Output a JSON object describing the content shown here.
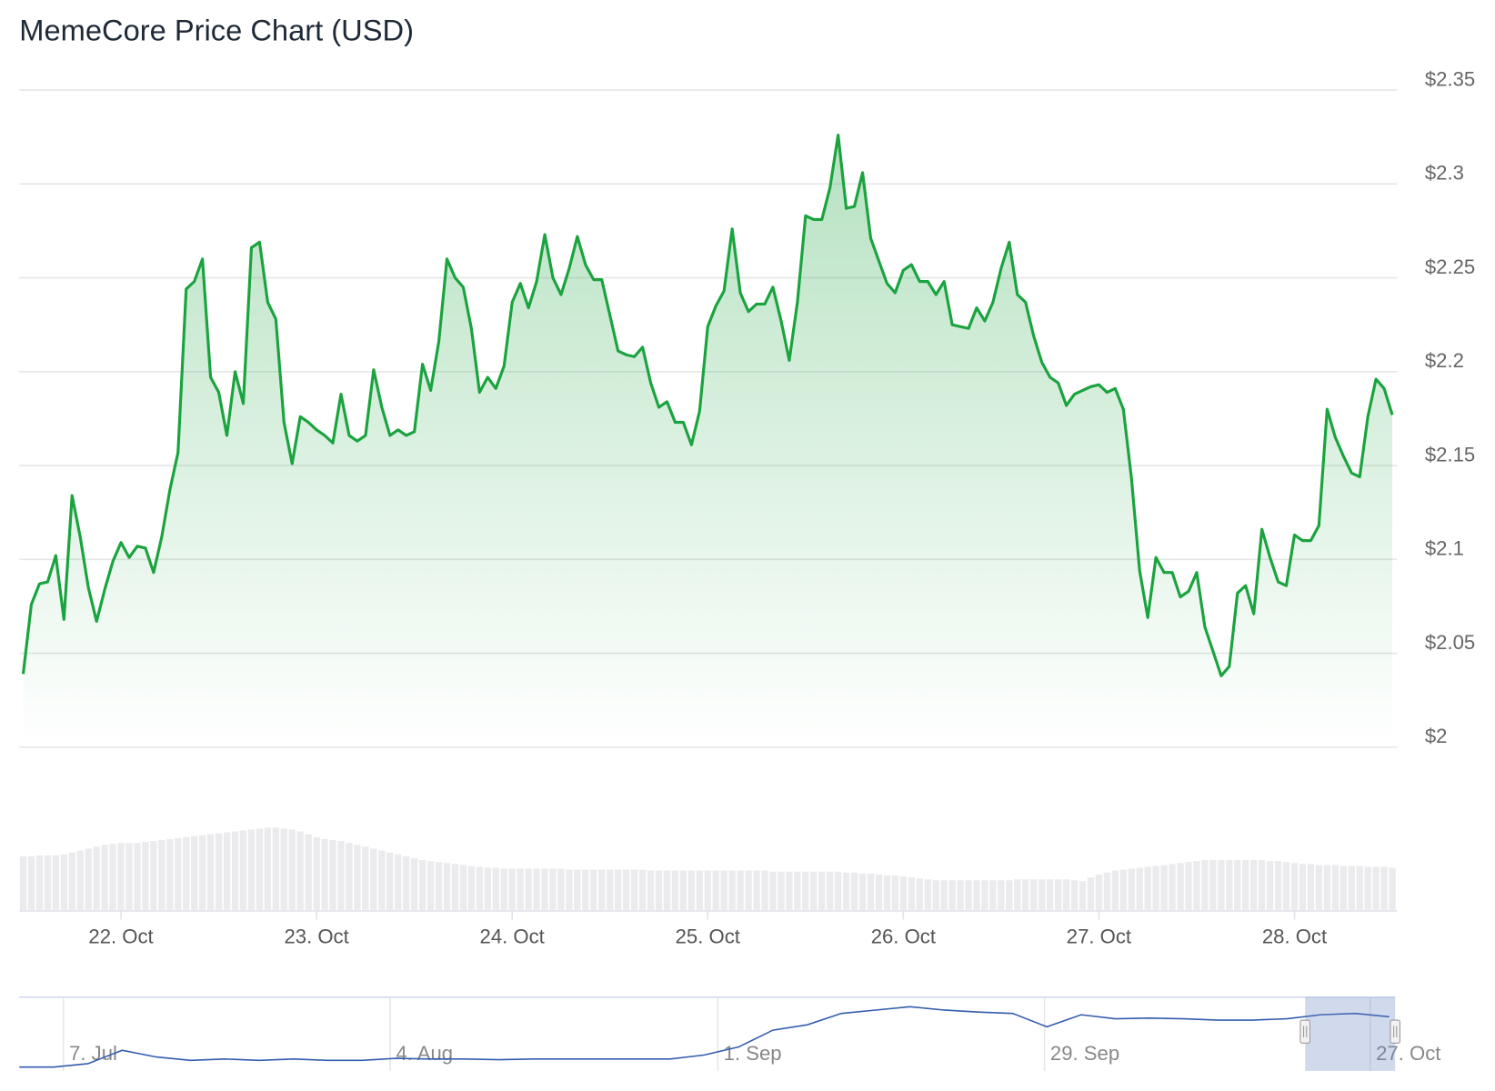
{
  "chart_data": {
    "type": "area",
    "title": "MemeCore Price Chart (USD)",
    "series": [
      {
        "name": "Price",
        "color": "#1aa33e",
        "values": [
          2.039,
          2.076,
          2.087,
          2.088,
          2.102,
          2.068,
          2.134,
          2.112,
          2.085,
          2.067,
          2.084,
          2.099,
          2.109,
          2.101,
          2.107,
          2.106,
          2.093,
          2.112,
          2.137,
          2.157,
          2.244,
          2.248,
          2.26,
          2.197,
          2.189,
          2.166,
          2.2,
          2.183,
          2.266,
          2.269,
          2.237,
          2.228,
          2.173,
          2.151,
          2.176,
          2.173,
          2.169,
          2.166,
          2.162,
          2.188,
          2.166,
          2.163,
          2.166,
          2.201,
          2.181,
          2.166,
          2.169,
          2.166,
          2.168,
          2.204,
          2.19,
          2.216,
          2.26,
          2.25,
          2.245,
          2.223,
          2.189,
          2.197,
          2.191,
          2.203,
          2.237,
          2.247,
          2.234,
          2.248,
          2.273,
          2.25,
          2.241,
          2.255,
          2.272,
          2.257,
          2.249,
          2.249,
          2.23,
          2.211,
          2.209,
          2.208,
          2.213,
          2.194,
          2.181,
          2.184,
          2.173,
          2.173,
          2.161,
          2.179,
          2.224,
          2.235,
          2.243,
          2.276,
          2.242,
          2.232,
          2.236,
          2.236,
          2.245,
          2.227,
          2.206,
          2.237,
          2.283,
          2.281,
          2.281,
          2.298,
          2.326,
          2.287,
          2.288,
          2.306,
          2.271,
          2.259,
          2.247,
          2.242,
          2.254,
          2.257,
          2.248,
          2.248,
          2.241,
          2.248,
          2.225,
          2.224,
          2.223,
          2.234,
          2.227,
          2.237,
          2.255,
          2.269,
          2.241,
          2.237,
          2.219,
          2.205,
          2.197,
          2.194,
          2.182,
          2.188,
          2.19,
          2.192,
          2.193,
          2.189,
          2.191,
          2.18,
          2.143,
          2.094,
          2.069,
          2.101,
          2.093,
          2.093,
          2.08,
          2.083,
          2.093,
          2.064,
          2.051,
          2.038,
          2.043,
          2.082,
          2.086,
          2.071,
          2.116,
          2.101,
          2.088,
          2.086,
          2.113,
          2.11,
          2.11,
          2.118,
          2.18,
          2.165,
          2.155,
          2.146,
          2.144,
          2.176,
          2.196,
          2.191,
          2.177
        ]
      }
    ],
    "volume": [
      56,
      56,
      57,
      57,
      57,
      58,
      60,
      62,
      64,
      66,
      68,
      69,
      70,
      70,
      70,
      71,
      72,
      73,
      74,
      75,
      76,
      77,
      78,
      79,
      80,
      81,
      82,
      83,
      84,
      85,
      86,
      86,
      85,
      84,
      82,
      79,
      76,
      74,
      73,
      72,
      70,
      68,
      66,
      64,
      62,
      60,
      58,
      56,
      54,
      52,
      51,
      50,
      49,
      48,
      47,
      46,
      45,
      44,
      44,
      43,
      43,
      43,
      43,
      43,
      43,
      43,
      43,
      42,
      42,
      42,
      42,
      42,
      42,
      42,
      42,
      42,
      42,
      41,
      41,
      41,
      41,
      41,
      41,
      41,
      41,
      41,
      41,
      41,
      41,
      41,
      41,
      41,
      40,
      40,
      40,
      40,
      40,
      40,
      40,
      40,
      40,
      39,
      39,
      38,
      38,
      37,
      36,
      36,
      35,
      34,
      33,
      32,
      31,
      31,
      31,
      31,
      31,
      31,
      31,
      31,
      31,
      31,
      32,
      32,
      32,
      32,
      32,
      32,
      32,
      31,
      30,
      34,
      37,
      39,
      41,
      42,
      43,
      44,
      45,
      46,
      47,
      48,
      49,
      50,
      51,
      52,
      52,
      52,
      52,
      52,
      52,
      52,
      52,
      51,
      51,
      50,
      49,
      48,
      48,
      47,
      47,
      47,
      46,
      46,
      46,
      45,
      45,
      45,
      44
    ],
    "ylim": [
      2.0,
      2.35
    ],
    "yticks": [
      {
        "value": 2.0,
        "label": "$2"
      },
      {
        "value": 2.05,
        "label": "$2.05"
      },
      {
        "value": 2.1,
        "label": "$2.1"
      },
      {
        "value": 2.15,
        "label": "$2.15"
      },
      {
        "value": 2.2,
        "label": "$2.2"
      },
      {
        "value": 2.25,
        "label": "$2.25"
      },
      {
        "value": 2.3,
        "label": "$2.3"
      },
      {
        "value": 2.35,
        "label": "$2.35"
      }
    ],
    "xticks": [
      {
        "value": 12,
        "label": "22. Oct"
      },
      {
        "value": 36,
        "label": "23. Oct"
      },
      {
        "value": 60,
        "label": "24. Oct"
      },
      {
        "value": 84,
        "label": "25. Oct"
      },
      {
        "value": 108,
        "label": "26. Oct"
      },
      {
        "value": 132,
        "label": "27. Oct"
      },
      {
        "value": 156,
        "label": "28. Oct"
      }
    ],
    "grid": true,
    "navigator": {
      "color": "#335cad",
      "labels": [
        "7. Jul",
        "4. Aug",
        "1. Sep",
        "29. Sep",
        "27. Oct"
      ],
      "values": [
        0,
        0,
        5,
        25,
        15,
        10,
        12,
        10,
        12,
        10,
        10,
        13,
        12,
        12,
        11,
        12,
        12,
        12,
        12,
        12,
        18,
        30,
        55,
        63,
        80,
        85,
        90,
        85,
        82,
        80,
        60,
        78,
        72,
        73,
        72,
        70,
        70,
        72,
        78,
        80,
        75
      ]
    }
  }
}
